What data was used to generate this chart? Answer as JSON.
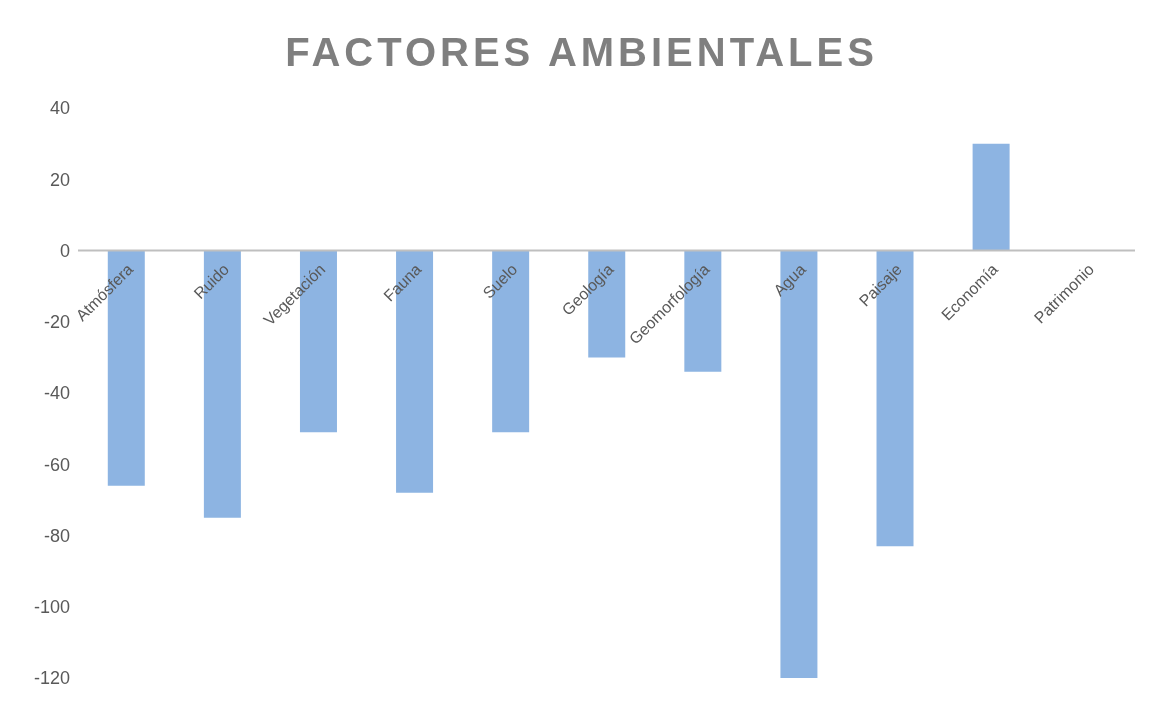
{
  "chart_data": {
    "type": "bar",
    "title": "FACTORES AMBIENTALES",
    "categories": [
      "Atmósfera",
      "Ruido",
      "Vegetación",
      "Fauna",
      "Suelo",
      "Geología",
      "Geomorfología",
      "Agua",
      "Paisaje",
      "Economía",
      "Patrimonio"
    ],
    "values": [
      -66,
      -75,
      -51,
      -68,
      -51,
      -30,
      -34,
      -120,
      -83,
      30,
      0
    ],
    "color": "#8db4e2",
    "ylim": [
      -120,
      40
    ],
    "yticks": [
      -120,
      -100,
      -80,
      -60,
      -40,
      -20,
      0,
      20,
      40
    ]
  }
}
